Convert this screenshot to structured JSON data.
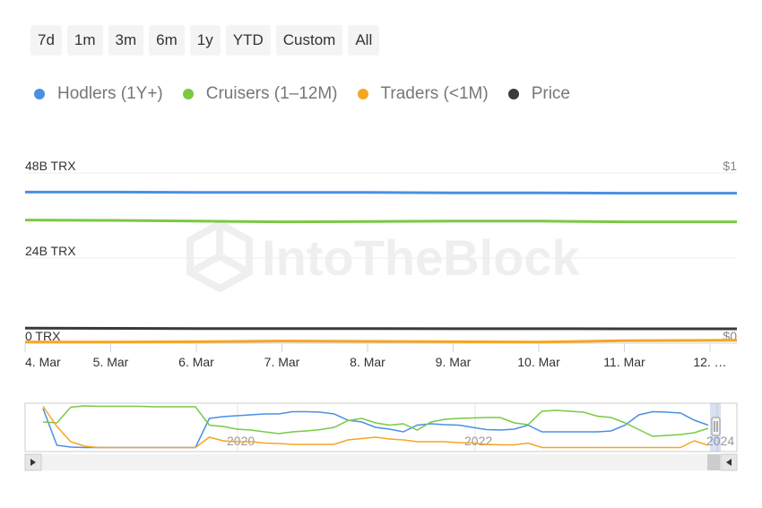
{
  "range_buttons": [
    "7d",
    "1m",
    "3m",
    "6m",
    "1y",
    "YTD",
    "Custom",
    "All"
  ],
  "colors": {
    "hodlers": "#4a90e2",
    "cruisers": "#7ac943",
    "traders": "#f5a623",
    "price": "#3a3a3a"
  },
  "watermark": "IntoTheBlock",
  "chart_data": {
    "type": "line",
    "legend": [
      {
        "key": "hodlers",
        "label": "Hodlers (1Y+)"
      },
      {
        "key": "cruisers",
        "label": "Cruisers (1–12M)"
      },
      {
        "key": "traders",
        "label": "Traders (<1M)"
      },
      {
        "key": "price",
        "label": "Price"
      }
    ],
    "legend_position": "top-left",
    "y_left": {
      "ticks": [
        "48B TRX",
        "24B TRX",
        "0 TRX"
      ],
      "values": [
        48,
        24,
        0
      ],
      "unit": "B TRX",
      "range": [
        0,
        48
      ]
    },
    "y_right": {
      "ticks": [
        "$1",
        "$0"
      ],
      "values": [
        1,
        0
      ],
      "range": [
        0,
        1
      ]
    },
    "x_ticks": [
      "4. Mar",
      "5. Mar",
      "6. Mar",
      "7. Mar",
      "8. Mar",
      "9. Mar",
      "10. Mar",
      "11. Mar",
      "12. …"
    ],
    "series": [
      {
        "key": "hodlers",
        "name": "Hodlers (1Y+)",
        "axis": "left",
        "x": [
          4.0,
          5.0,
          6.0,
          7.0,
          8.0,
          9.0,
          10.0,
          11.0,
          12.0
        ],
        "values": [
          42.6,
          42.6,
          42.5,
          42.5,
          42.5,
          42.4,
          42.4,
          42.3,
          42.3
        ]
      },
      {
        "key": "cruisers",
        "name": "Cruisers (1–12M)",
        "axis": "left",
        "x": [
          4.0,
          5.0,
          6.0,
          7.0,
          8.0,
          9.0,
          10.0,
          11.0,
          12.0
        ],
        "values": [
          34.7,
          34.6,
          34.4,
          34.2,
          34.3,
          34.4,
          34.4,
          34.2,
          34.2
        ]
      },
      {
        "key": "traders",
        "name": "Traders (<1M)",
        "axis": "left",
        "x": [
          4.0,
          5.0,
          6.0,
          7.0,
          8.0,
          9.0,
          10.0,
          11.0,
          12.0
        ],
        "values": [
          0.3,
          0.3,
          0.4,
          0.6,
          0.5,
          0.4,
          0.3,
          0.7,
          0.8
        ]
      },
      {
        "key": "price",
        "name": "Price",
        "axis": "right",
        "x": [
          4.0,
          5.0,
          6.0,
          7.0,
          8.0,
          9.0,
          10.0,
          11.0,
          12.0
        ],
        "values": [
          0.088,
          0.087,
          0.086,
          0.086,
          0.086,
          0.085,
          0.085,
          0.084,
          0.084
        ]
      }
    ],
    "grid": true,
    "navigator": {
      "labels": [
        "2020",
        "2022",
        "2024"
      ],
      "series": [
        {
          "key": "hodlers",
          "values": [
            0.92,
            0.1,
            0.06,
            0.05,
            0.05,
            0.05,
            0.05,
            0.05,
            0.05,
            0.05,
            0.05,
            0.05,
            0.7,
            0.74,
            0.76,
            0.78,
            0.8,
            0.8,
            0.85,
            0.85,
            0.84,
            0.8,
            0.66,
            0.62,
            0.5,
            0.46,
            0.4,
            0.55,
            0.58,
            0.56,
            0.55,
            0.5,
            0.45,
            0.44,
            0.46,
            0.55,
            0.4,
            0.4,
            0.4,
            0.4,
            0.4,
            0.42,
            0.55,
            0.78,
            0.85,
            0.84,
            0.82,
            0.66,
            0.55
          ]
        },
        {
          "key": "cruisers",
          "values": [
            0.62,
            0.6,
            0.95,
            0.98,
            0.97,
            0.97,
            0.97,
            0.97,
            0.96,
            0.96,
            0.96,
            0.96,
            0.55,
            0.52,
            0.46,
            0.44,
            0.4,
            0.36,
            0.4,
            0.42,
            0.45,
            0.5,
            0.65,
            0.7,
            0.6,
            0.55,
            0.58,
            0.44,
            0.62,
            0.68,
            0.7,
            0.71,
            0.72,
            0.72,
            0.6,
            0.56,
            0.86,
            0.88,
            0.86,
            0.84,
            0.75,
            0.72,
            0.6,
            0.45,
            0.3,
            0.32,
            0.34,
            0.38,
            0.48
          ]
        },
        {
          "key": "traders",
          "values": [
            0.97,
            0.52,
            0.18,
            0.08,
            0.05,
            0.05,
            0.05,
            0.05,
            0.05,
            0.05,
            0.05,
            0.05,
            0.28,
            0.2,
            0.18,
            0.18,
            0.15,
            0.14,
            0.12,
            0.12,
            0.12,
            0.12,
            0.22,
            0.25,
            0.28,
            0.24,
            0.22,
            0.18,
            0.18,
            0.18,
            0.16,
            0.15,
            0.12,
            0.11,
            0.11,
            0.15,
            0.05,
            0.05,
            0.05,
            0.05,
            0.05,
            0.05,
            0.05,
            0.05,
            0.05,
            0.05,
            0.05,
            0.2,
            0.1
          ]
        }
      ]
    }
  }
}
